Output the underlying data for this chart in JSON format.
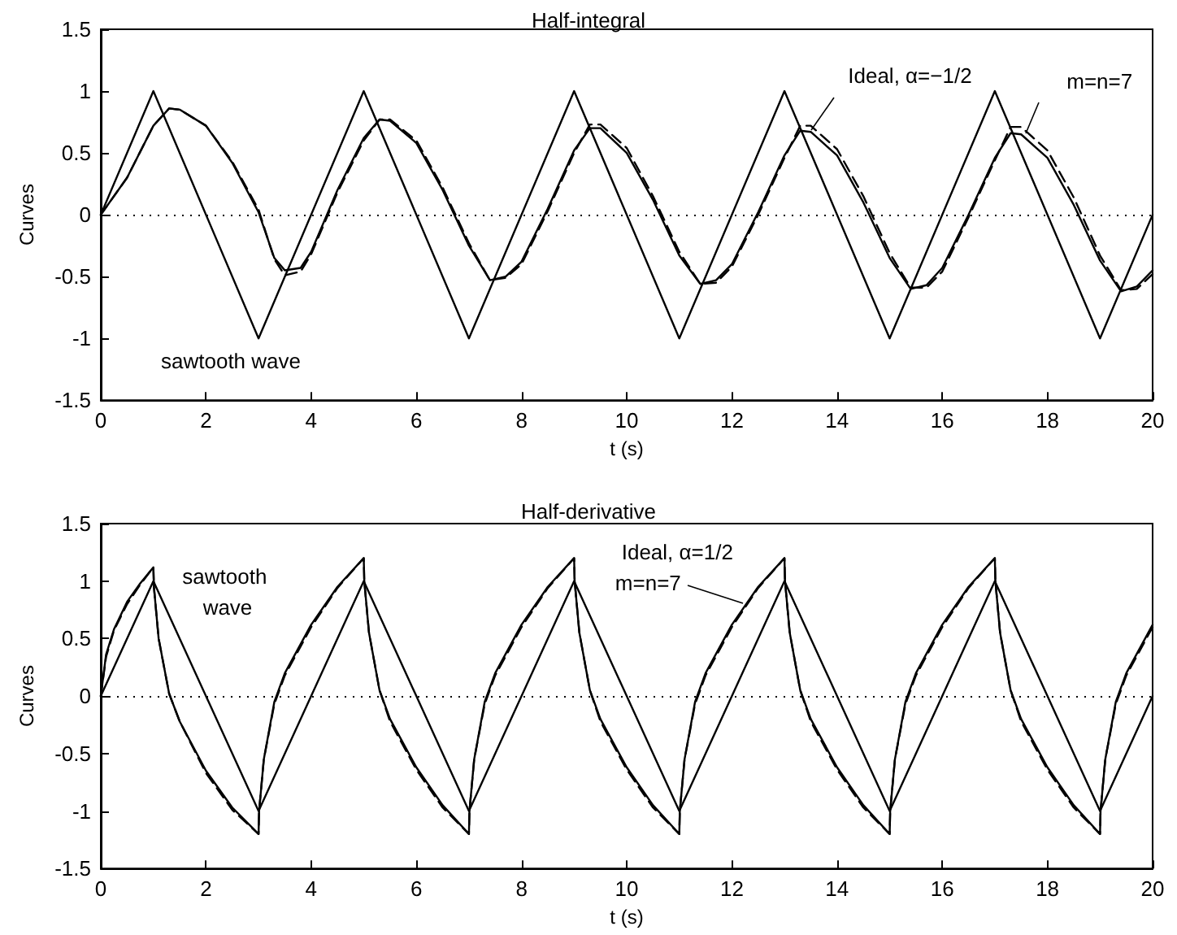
{
  "chart_data": [
    {
      "type": "line",
      "title": "Half-integral",
      "xlabel": "t (s)",
      "ylabel": "Curves",
      "xlim": [
        0,
        20
      ],
      "xticks": [
        0,
        2,
        4,
        6,
        8,
        10,
        12,
        14,
        16,
        18,
        20
      ],
      "ylim": [
        -1.5,
        1.5
      ],
      "yticks": [
        -1.5,
        -1,
        -0.5,
        0,
        0.5,
        1,
        1.5
      ],
      "grid": false,
      "marker": "none",
      "ref_lines": [
        {
          "axis": "y",
          "value": 0,
          "color": "#000000",
          "line_style": "dotted"
        }
      ],
      "annotations": [
        {
          "text": "Ideal, α=−1/2",
          "x": 13.5,
          "y": 0.68
        },
        {
          "text": "m=n=7",
          "x": 17.6,
          "y": 0.66
        },
        "sawtooth wave"
      ],
      "series": [
        {
          "color": "#000000",
          "line_style": "solid",
          "x": [
            0,
            1,
            3,
            5,
            7,
            9,
            11,
            13,
            15,
            17,
            19,
            20
          ],
          "values": [
            0,
            1,
            -1,
            1,
            -1,
            1,
            -1,
            1,
            -1,
            1,
            -1,
            0
          ]
        },
        {
          "color": "#000000",
          "line_style": "solid",
          "x": [
            0,
            0.5,
            1,
            1.3,
            1.5,
            2,
            2.5,
            3,
            3.3,
            3.5,
            3.8,
            4,
            4.5,
            5,
            5.3,
            5.5,
            6,
            6.5,
            7,
            7.4,
            7.7,
            8,
            8.5,
            9,
            9.3,
            9.5,
            10,
            10.5,
            11,
            11.4,
            11.7,
            12,
            12.5,
            13,
            13.3,
            13.5,
            14,
            14.5,
            15,
            15.4,
            15.7,
            16,
            16.5,
            17,
            17.3,
            17.5,
            18,
            18.5,
            19,
            19.4,
            19.7,
            20
          ],
          "values": [
            0,
            0.3,
            0.72,
            0.86,
            0.85,
            0.72,
            0.42,
            0.02,
            -0.35,
            -0.45,
            -0.43,
            -0.3,
            0.2,
            0.62,
            0.77,
            0.76,
            0.58,
            0.2,
            -0.25,
            -0.53,
            -0.5,
            -0.38,
            0.05,
            0.52,
            0.7,
            0.7,
            0.5,
            0.12,
            -0.33,
            -0.56,
            -0.53,
            -0.4,
            0.02,
            0.48,
            0.68,
            0.67,
            0.48,
            0.1,
            -0.35,
            -0.6,
            -0.57,
            -0.43,
            0,
            0.46,
            0.66,
            0.65,
            0.46,
            0.08,
            -0.37,
            -0.62,
            -0.58,
            -0.45
          ]
        },
        {
          "color": "#000000",
          "line_style": "dashed",
          "x": [
            0,
            0.5,
            1,
            1.3,
            1.5,
            2,
            2.5,
            3,
            3.3,
            3.5,
            3.8,
            4,
            4.5,
            5,
            5.3,
            5.5,
            6,
            6.5,
            7,
            7.4,
            7.7,
            8,
            8.5,
            9,
            9.3,
            9.5,
            10,
            10.5,
            11,
            11.4,
            11.7,
            12,
            12.5,
            13,
            13.3,
            13.5,
            14,
            14.5,
            15,
            15.4,
            15.7,
            16,
            16.5,
            17,
            17.3,
            17.5,
            18,
            18.5,
            19,
            19.4,
            19.7,
            20
          ],
          "values": [
            0,
            0.3,
            0.72,
            0.86,
            0.85,
            0.72,
            0.43,
            0.04,
            -0.36,
            -0.49,
            -0.46,
            -0.32,
            0.18,
            0.6,
            0.77,
            0.77,
            0.6,
            0.22,
            -0.23,
            -0.53,
            -0.51,
            -0.4,
            0.03,
            0.5,
            0.73,
            0.73,
            0.54,
            0.15,
            -0.3,
            -0.56,
            -0.55,
            -0.42,
            0,
            0.46,
            0.72,
            0.72,
            0.53,
            0.15,
            -0.31,
            -0.59,
            -0.59,
            -0.46,
            -0.02,
            0.44,
            0.71,
            0.71,
            0.52,
            0.14,
            -0.33,
            -0.61,
            -0.6,
            -0.48
          ]
        }
      ]
    },
    {
      "type": "line",
      "title": "Half-derivative",
      "xlabel": "t (s)",
      "ylabel": "Curves",
      "xlim": [
        0,
        20
      ],
      "xticks": [
        0,
        2,
        4,
        6,
        8,
        10,
        12,
        14,
        16,
        18,
        20
      ],
      "ylim": [
        -1.5,
        1.5
      ],
      "yticks": [
        -1.5,
        -1,
        -0.5,
        0,
        0.5,
        1,
        1.5
      ],
      "grid": false,
      "marker": "none",
      "ref_lines": [
        {
          "axis": "y",
          "value": 0,
          "color": "#000000",
          "line_style": "dotted"
        }
      ],
      "annotations": [
        "sawtooth wave",
        {
          "text": "Ideal, α=1/2",
          "x": 12.2,
          "y": 0.8
        },
        {
          "text": "m=n=7",
          "x": 12.2,
          "y": 0.8
        }
      ],
      "series": [
        {
          "color": "#000000",
          "line_style": "solid",
          "x": [
            0,
            1,
            3,
            5,
            7,
            9,
            11,
            13,
            15,
            17,
            19,
            20
          ],
          "values": [
            0,
            1,
            -1,
            1,
            -1,
            1,
            -1,
            1,
            -1,
            1,
            -1,
            0
          ]
        },
        {
          "color": "#000000",
          "line_style": "solid",
          "x": [
            0,
            0.1,
            0.25,
            0.5,
            0.75,
            1,
            1.01,
            1.1,
            1.3,
            1.5,
            2,
            2.5,
            3,
            3.01,
            3.1,
            3.3,
            3.5,
            4,
            4.5,
            5,
            5.01,
            5.1,
            5.3,
            5.5,
            6,
            6.5,
            7,
            7.01,
            7.1,
            7.3,
            7.5,
            8,
            8.5,
            9,
            9.01,
            9.1,
            9.3,
            9.5,
            10,
            10.5,
            11,
            11.01,
            11.1,
            11.3,
            11.5,
            12,
            12.5,
            13,
            13.01,
            13.1,
            13.3,
            13.5,
            14,
            14.5,
            15,
            15.01,
            15.1,
            15.3,
            15.5,
            16,
            16.5,
            17,
            17.01,
            17.1,
            17.3,
            17.5,
            18,
            18.5,
            19,
            19.01,
            19.1,
            19.3,
            19.5,
            20
          ],
          "values": [
            0,
            0.36,
            0.58,
            0.82,
            0.98,
            1.12,
            0.95,
            0.5,
            0.02,
            -0.22,
            -0.65,
            -0.97,
            -1.2,
            -1,
            -0.55,
            -0.05,
            0.2,
            0.62,
            0.95,
            1.2,
            1,
            0.55,
            0.05,
            -0.2,
            -0.62,
            -0.95,
            -1.2,
            -1,
            -0.55,
            -0.05,
            0.2,
            0.62,
            0.95,
            1.2,
            1,
            0.55,
            0.05,
            -0.2,
            -0.62,
            -0.95,
            -1.2,
            -1,
            -0.55,
            -0.05,
            0.2,
            0.62,
            0.95,
            1.2,
            1,
            0.55,
            0.05,
            -0.2,
            -0.62,
            -0.95,
            -1.2,
            -1,
            -0.55,
            -0.05,
            0.2,
            0.62,
            0.95,
            1.2,
            1,
            0.55,
            0.05,
            -0.2,
            -0.62,
            -0.95,
            -1.2,
            -1,
            -0.55,
            -0.05,
            0.2,
            0.62
          ]
        },
        {
          "color": "#000000",
          "line_style": "dashed",
          "x": [
            0,
            0.1,
            0.25,
            0.5,
            0.75,
            1,
            1.01,
            1.1,
            1.3,
            1.5,
            2,
            2.5,
            3,
            3.01,
            3.1,
            3.3,
            3.5,
            4,
            4.5,
            5,
            5.01,
            5.1,
            5.3,
            5.5,
            6,
            6.5,
            7,
            7.01,
            7.1,
            7.3,
            7.5,
            8,
            8.5,
            9,
            9.01,
            9.1,
            9.3,
            9.5,
            10,
            10.5,
            11,
            11.01,
            11.1,
            11.3,
            11.5,
            12,
            12.5,
            13,
            13.01,
            13.1,
            13.3,
            13.5,
            14,
            14.5,
            15,
            15.01,
            15.1,
            15.3,
            15.5,
            16,
            16.5,
            17,
            17.01,
            17.1,
            17.3,
            17.5,
            18,
            18.5,
            19,
            19.01,
            19.1,
            19.3,
            19.5,
            20
          ],
          "values": [
            0,
            0.34,
            0.57,
            0.8,
            0.97,
            1.12,
            0.95,
            0.5,
            0.02,
            -0.22,
            -0.67,
            -0.99,
            -1.2,
            -1,
            -0.55,
            -0.07,
            0.18,
            0.6,
            0.94,
            1.2,
            1,
            0.55,
            0.05,
            -0.22,
            -0.64,
            -0.97,
            -1.2,
            -1,
            -0.55,
            -0.07,
            0.18,
            0.6,
            0.94,
            1.2,
            1,
            0.55,
            0.05,
            -0.22,
            -0.64,
            -0.97,
            -1.2,
            -1,
            -0.55,
            -0.07,
            0.18,
            0.6,
            0.94,
            1.2,
            1,
            0.55,
            0.05,
            -0.22,
            -0.64,
            -0.97,
            -1.2,
            -1,
            -0.55,
            -0.07,
            0.18,
            0.6,
            0.94,
            1.2,
            1,
            0.55,
            0.05,
            -0.22,
            -0.64,
            -0.97,
            -1.2,
            -1,
            -0.55,
            -0.07,
            0.18,
            0.6
          ]
        }
      ]
    }
  ]
}
